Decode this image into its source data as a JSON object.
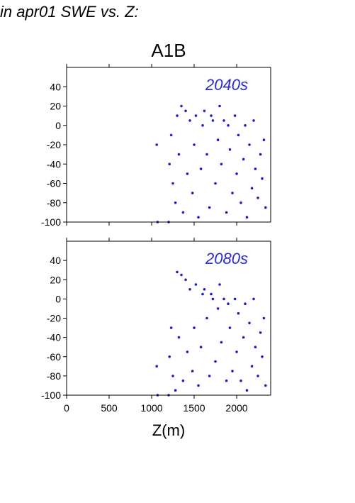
{
  "header": {
    "title": "in apr01 SWE vs. Z:"
  },
  "chart_data": [
    {
      "type": "scatter",
      "title": "A1B",
      "label": "2040s",
      "xlabel": "",
      "ylabel": "",
      "xlim": [
        0,
        2400
      ],
      "ylim": [
        -100,
        60
      ],
      "xticks": [
        0,
        500,
        1000,
        1500,
        2000
      ],
      "yticks": [
        -100,
        -80,
        -60,
        -40,
        -20,
        0,
        20,
        40
      ],
      "xticks_labeled": false,
      "marker_color": "#1f1fc8",
      "label_color": "#2a2ad0",
      "grid": false,
      "points_x": [
        1060,
        1070,
        1200,
        1210,
        1230,
        1250,
        1280,
        1300,
        1320,
        1350,
        1370,
        1400,
        1420,
        1450,
        1480,
        1500,
        1520,
        1550,
        1580,
        1600,
        1620,
        1650,
        1680,
        1700,
        1720,
        1750,
        1780,
        1800,
        1820,
        1850,
        1880,
        1900,
        1920,
        1950,
        1980,
        2000,
        2020,
        2050,
        2080,
        2100,
        2120,
        2150,
        2180,
        2200,
        2220,
        2250,
        2280,
        2300,
        2320,
        2340
      ],
      "points_y": [
        -20,
        -100,
        -100,
        -40,
        -10,
        -60,
        -80,
        10,
        -30,
        20,
        -90,
        15,
        -50,
        5,
        -70,
        -20,
        10,
        -95,
        -45,
        0,
        15,
        -30,
        -85,
        10,
        5,
        -60,
        -15,
        20,
        -40,
        5,
        -90,
        0,
        -25,
        -70,
        10,
        -50,
        -10,
        -80,
        -35,
        0,
        -95,
        -20,
        -65,
        5,
        -45,
        -75,
        -30,
        -55,
        -15,
        -85
      ]
    },
    {
      "type": "scatter",
      "title": "",
      "label": "2080s",
      "xlabel": "Z(m)",
      "ylabel": "",
      "xlim": [
        0,
        2400
      ],
      "ylim": [
        -100,
        60
      ],
      "xticks": [
        0,
        500,
        1000,
        1500,
        2000
      ],
      "yticks": [
        -100,
        -80,
        -60,
        -40,
        -20,
        0,
        20,
        40
      ],
      "xticks_labeled": true,
      "marker_color": "#1f1fc8",
      "label_color": "#2a2ad0",
      "grid": false,
      "points_x": [
        1060,
        1070,
        1200,
        1210,
        1230,
        1250,
        1280,
        1300,
        1320,
        1350,
        1370,
        1400,
        1420,
        1450,
        1480,
        1500,
        1520,
        1550,
        1580,
        1600,
        1620,
        1650,
        1680,
        1700,
        1720,
        1750,
        1780,
        1800,
        1820,
        1850,
        1880,
        1900,
        1920,
        1950,
        1980,
        2000,
        2020,
        2050,
        2080,
        2100,
        2120,
        2150,
        2180,
        2200,
        2220,
        2250,
        2280,
        2300,
        2320,
        2340
      ],
      "points_y": [
        -70,
        -100,
        -100,
        -60,
        -30,
        -80,
        -95,
        28,
        -40,
        25,
        -85,
        20,
        -55,
        10,
        -75,
        -30,
        15,
        -90,
        -50,
        5,
        10,
        -20,
        -80,
        5,
        0,
        -65,
        -10,
        15,
        -45,
        0,
        -85,
        -5,
        -30,
        -75,
        0,
        -55,
        -15,
        -85,
        -40,
        -5,
        -95,
        -25,
        -70,
        0,
        -50,
        -80,
        -35,
        -60,
        -20,
        -90
      ]
    }
  ]
}
